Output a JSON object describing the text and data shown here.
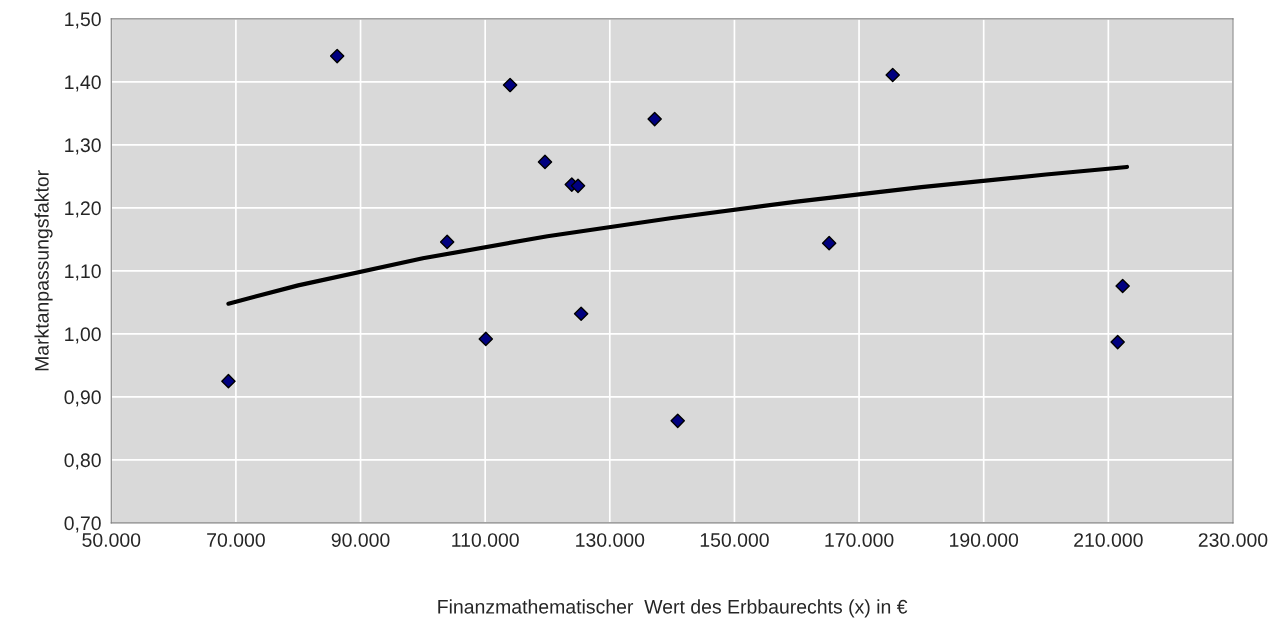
{
  "chart_data": {
    "type": "scatter",
    "xlabel": "Finanzmathematischer  Wert des Erbbaurechts (x) in €",
    "ylabel": "Marktanpassungsfaktor",
    "series": [
      {
        "color": "#000080",
        "marker": "diamond",
        "x": [
          68800,
          86250,
          103900,
          110100,
          114000,
          119600,
          123900,
          124900,
          125400,
          137200,
          140900,
          165200,
          175400,
          211500,
          212300
        ],
        "values": [
          0.925,
          1.441,
          1.146,
          0.992,
          1.395,
          1.273,
          1.237,
          1.235,
          1.032,
          1.341,
          0.862,
          1.144,
          1.411,
          0.987,
          1.076
        ]
      },
      {
        "type": "line",
        "color": "#000000",
        "marker": "none",
        "x": [
          68800,
          80000,
          100000,
          120000,
          140000,
          160000,
          180000,
          200000,
          213000
        ],
        "values": [
          1.048,
          1.077,
          1.12,
          1.155,
          1.184,
          1.21,
          1.233,
          1.253,
          1.265
        ]
      }
    ],
    "xlim": [
      50000,
      230000
    ],
    "xticks": [
      {
        "value": 50000,
        "label": "50.000"
      },
      {
        "value": 70000,
        "label": "70.000"
      },
      {
        "value": 90000,
        "label": "90.000"
      },
      {
        "value": 110000,
        "label": "110.000"
      },
      {
        "value": 130000,
        "label": "130.000"
      },
      {
        "value": 150000,
        "label": "150.000"
      },
      {
        "value": 170000,
        "label": "170.000"
      },
      {
        "value": 190000,
        "label": "190.000"
      },
      {
        "value": 210000,
        "label": "210.000"
      },
      {
        "value": 230000,
        "label": "230.000"
      }
    ],
    "ylim": [
      0.7,
      1.5
    ],
    "yticks": [
      {
        "value": 0.7,
        "label": "0,70"
      },
      {
        "value": 0.8,
        "label": "0,80"
      },
      {
        "value": 0.9,
        "label": "0,90"
      },
      {
        "value": 1.0,
        "label": "1,00"
      },
      {
        "value": 1.1,
        "label": "1,10"
      },
      {
        "value": 1.2,
        "label": "1,20"
      },
      {
        "value": 1.3,
        "label": "1,30"
      },
      {
        "value": 1.4,
        "label": "1,40"
      },
      {
        "value": 1.5,
        "label": "1,50"
      }
    ],
    "grid": true,
    "legend": false
  }
}
